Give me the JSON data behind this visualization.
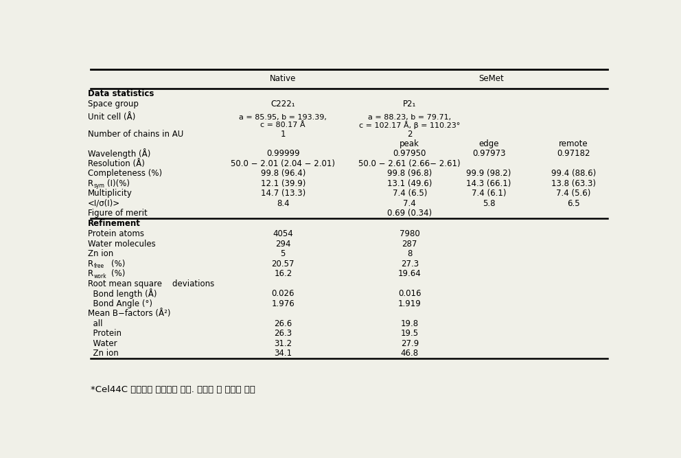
{
  "title_text": "*Cel44C 단백질의 결정학적 통계. 데이터 및 정밀화 통계",
  "header_native": "Native",
  "header_semet": "SeMet",
  "background": "#f0f0e8",
  "rows": [
    {
      "type": "section",
      "label": "Data statistics"
    },
    {
      "type": "data",
      "label": "Space group",
      "native": "C222₁",
      "semet": "P2₁",
      "peak": "",
      "edge": "",
      "remote": ""
    },
    {
      "type": "data2line",
      "label": "Unit cell (Å)",
      "native_l1": "a = 85.95, b = 193.39,",
      "native_l2": "c = 80.17 Å",
      "semet_l1": "a = 88.23, b = 79.71,",
      "semet_l2": "c = 102.17 Å, β = 110.23°"
    },
    {
      "type": "data",
      "label": "Number of chains in AU",
      "native": "1",
      "semet": "2",
      "peak": "",
      "edge": "",
      "remote": ""
    },
    {
      "type": "subheader"
    },
    {
      "type": "data",
      "label": "Wavelength (Å)",
      "native": "0.99999",
      "semet": "",
      "peak": "0.97950",
      "edge": "0.97973",
      "remote": "0.97182"
    },
    {
      "type": "data",
      "label": "Resolution (Å)",
      "native": "50.0 − 2.01 (2.04 − 2.01)",
      "semet": "50.0 − 2.61 (2.66− 2.61)",
      "peak": "",
      "edge": "",
      "remote": ""
    },
    {
      "type": "data",
      "label": "Completeness (%)",
      "native": "99.8 (96.4)",
      "semet": "",
      "peak": "99.8 (96.8)",
      "edge": "99.9 (98.2)",
      "remote": "99.4 (88.6)"
    },
    {
      "type": "data_rsym",
      "label_pre": "R",
      "label_sub": "sym",
      "label_post": "(I)(%)",
      "native": "12.1 (39.9)",
      "semet": "",
      "peak": "13.1 (49.6)",
      "edge": "14.3 (66.1)",
      "remote": "13.8 (63.3)"
    },
    {
      "type": "data",
      "label": "Multiplicity",
      "native": "14.7 (13.3)",
      "semet": "",
      "peak": "7.4 (6.5)",
      "edge": "7.4 (6.1)",
      "remote": "7.4 (5.6)"
    },
    {
      "type": "data",
      "label": "<I/σ(I)>",
      "native": "8.4",
      "semet": "",
      "peak": "7.4",
      "edge": "5.8",
      "remote": "6.5"
    },
    {
      "type": "data",
      "label": "Figure of merit",
      "native": "",
      "semet": "0.69 (0.34)",
      "peak": "",
      "edge": "",
      "remote": ""
    },
    {
      "type": "section",
      "label": "Refinement"
    },
    {
      "type": "data",
      "label": "Protein atoms",
      "native": "4054",
      "semet": "7980",
      "peak": "",
      "edge": "",
      "remote": ""
    },
    {
      "type": "data",
      "label": "Water molecules",
      "native": "294",
      "semet": "287",
      "peak": "",
      "edge": "",
      "remote": ""
    },
    {
      "type": "data",
      "label": "Zn ion",
      "native": "5",
      "semet": "8",
      "peak": "",
      "edge": "",
      "remote": ""
    },
    {
      "type": "data_r",
      "label_pre": "R",
      "label_sub": "free",
      "label_post": "(%)",
      "native": "20.57",
      "semet": "27.3",
      "peak": "",
      "edge": "",
      "remote": ""
    },
    {
      "type": "data_r",
      "label_pre": "R",
      "label_sub": "work",
      "label_post": "(%)",
      "native": "16.2",
      "semet": "19.64",
      "peak": "",
      "edge": "",
      "remote": ""
    },
    {
      "type": "data",
      "label": "Root mean square    deviations",
      "native": "",
      "semet": "",
      "peak": "",
      "edge": "",
      "remote": ""
    },
    {
      "type": "data",
      "label": "  Bond length (Å)",
      "native": "0.026",
      "semet": "0.016",
      "peak": "",
      "edge": "",
      "remote": ""
    },
    {
      "type": "data",
      "label": "  Bond Angle (°)",
      "native": "1.976",
      "semet": "1.919",
      "peak": "",
      "edge": "",
      "remote": ""
    },
    {
      "type": "data",
      "label": "Mean B−factors (Å²)",
      "native": "",
      "semet": "",
      "peak": "",
      "edge": "",
      "remote": ""
    },
    {
      "type": "data",
      "label": "  all",
      "native": "26.6",
      "semet": "19.8",
      "peak": "",
      "edge": "",
      "remote": ""
    },
    {
      "type": "data",
      "label": "  Protein",
      "native": "26.3",
      "semet": "19.5",
      "peak": "",
      "edge": "",
      "remote": ""
    },
    {
      "type": "data",
      "label": "  Water",
      "native": "31.2",
      "semet": "27.9",
      "peak": "",
      "edge": "",
      "remote": ""
    },
    {
      "type": "data",
      "label": "  Zn ion",
      "native": "34.1",
      "semet": "46.8",
      "peak": "",
      "edge": "",
      "remote": ""
    }
  ]
}
